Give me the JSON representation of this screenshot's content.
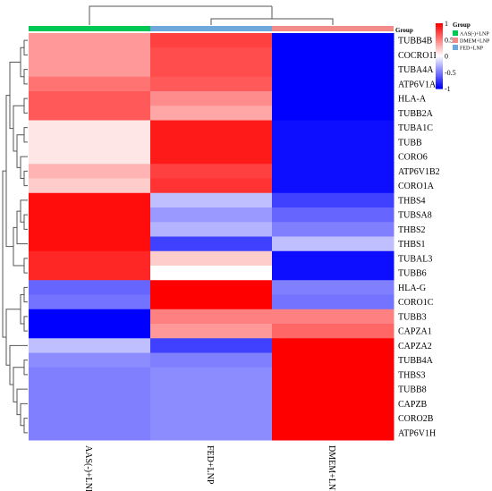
{
  "chart_data": {
    "type": "heatmap",
    "columns": [
      "AAS(-)+LNP",
      "FED+LNP",
      "DMEM+LNP"
    ],
    "column_groups": [
      "AAS(-)+LNP",
      "FED+LNP",
      "DMEM+LNP"
    ],
    "rows": [
      "TUBB4B",
      "COCRO1B",
      "TUBA4A",
      "ATP6V1A",
      "HLA-A",
      "TUBB2A",
      "TUBA1C",
      "TUBB",
      "CORO6",
      "ATP6V1B2",
      "CORO1A",
      "THBS4",
      "TUBSA8",
      "THBS2",
      "THBS1",
      "TUBAL3",
      "TUBB6",
      "HLA-G",
      "CORO1C",
      "TUBB3",
      "CAPZA1",
      "CAPZA2",
      "TUBB4A",
      "THBS3",
      "TUBB8",
      "CAPZB",
      "CORO2B",
      "ATP6V1H"
    ],
    "values": [
      [
        0.4,
        0.75,
        -1.0
      ],
      [
        0.4,
        0.7,
        -1.0
      ],
      [
        0.4,
        0.7,
        -1.0
      ],
      [
        0.55,
        0.65,
        -1.0
      ],
      [
        0.65,
        0.45,
        -1.0
      ],
      [
        0.65,
        0.35,
        -1.0
      ],
      [
        0.1,
        0.9,
        -0.95
      ],
      [
        0.1,
        0.9,
        -0.95
      ],
      [
        0.1,
        0.9,
        -0.95
      ],
      [
        0.3,
        0.75,
        -0.95
      ],
      [
        0.2,
        0.8,
        -0.95
      ],
      [
        0.95,
        -0.25,
        -0.75
      ],
      [
        0.95,
        -0.4,
        -0.6
      ],
      [
        0.95,
        -0.3,
        -0.5
      ],
      [
        0.95,
        -0.75,
        -0.25
      ],
      [
        0.85,
        0.2,
        -0.95
      ],
      [
        0.85,
        0.0,
        -0.95
      ],
      [
        -0.6,
        1.0,
        -0.5
      ],
      [
        -0.55,
        1.0,
        -0.55
      ],
      [
        -1.0,
        0.5,
        0.5
      ],
      [
        -1.0,
        0.4,
        0.6
      ],
      [
        -0.25,
        -0.75,
        1.0
      ],
      [
        -0.45,
        -0.5,
        1.0
      ],
      [
        -0.5,
        -0.45,
        1.0
      ],
      [
        -0.5,
        -0.45,
        1.0
      ],
      [
        -0.5,
        -0.45,
        1.0
      ],
      [
        -0.5,
        -0.45,
        1.0
      ],
      [
        -0.5,
        -0.45,
        1.0
      ]
    ],
    "scale": {
      "min": -1,
      "max": 1,
      "ticks": [
        "1",
        "0.5",
        "0",
        "-0.5",
        "-1"
      ]
    },
    "color_low": "#0000ff",
    "color_mid": "#ffffff",
    "color_high": "#ff0000",
    "group_colors": {
      "AAS(-)+LNP": "#00c853",
      "DMEM+LNP": "#f48b8b",
      "FED+LNP": "#6fa8dc"
    },
    "annotation_label": "Group",
    "legend_title": "Group",
    "legend_entries": [
      "AAS(-)+LNP",
      "DMEM+LNP",
      "FED+LNP"
    ],
    "row_dendrogram": true,
    "column_dendrogram": true
  }
}
